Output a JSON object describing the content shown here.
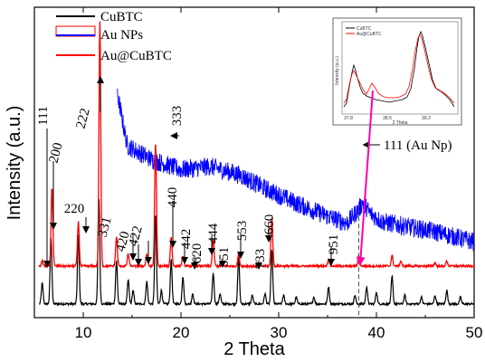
{
  "chart_data": {
    "type": "line",
    "xlabel": "2 Theta",
    "ylabel": "Intensity (a.u.)",
    "xlim": [
      5,
      50
    ],
    "x_ticks": [
      "10",
      "20",
      "30",
      "40",
      "50"
    ],
    "legend": {
      "position": "top-left",
      "entries": [
        {
          "label": "CuBTC",
          "color": "#000000"
        },
        {
          "label": "Au NPs",
          "color": "#0000ff"
        },
        {
          "label": "Au@CuBTC",
          "color": "#ff0000"
        }
      ]
    },
    "series": [
      {
        "name": "CuBTC",
        "color": "#000000",
        "baseline": 0.08,
        "peaks": [
          [
            5.8,
            0.12
          ],
          [
            6.7,
            0.38
          ],
          [
            9.5,
            0.4
          ],
          [
            11.6,
            0.62
          ],
          [
            13.4,
            0.25
          ],
          [
            14.6,
            0.14
          ],
          [
            15.1,
            0.08
          ],
          [
            16.5,
            0.13
          ],
          [
            17.4,
            0.52
          ],
          [
            18.0,
            0.08
          ],
          [
            19.0,
            0.26
          ],
          [
            20.2,
            0.16
          ],
          [
            21.2,
            0.06
          ],
          [
            23.3,
            0.18
          ],
          [
            24.0,
            0.06
          ],
          [
            25.9,
            0.28
          ],
          [
            27.3,
            0.05
          ],
          [
            28.6,
            0.06
          ],
          [
            29.3,
            0.32
          ],
          [
            30.5,
            0.05
          ],
          [
            31.8,
            0.04
          ],
          [
            33.6,
            0.04
          ],
          [
            35.1,
            0.1
          ],
          [
            37.8,
            0.05
          ],
          [
            39.0,
            0.1
          ],
          [
            40.0,
            0.07
          ],
          [
            41.6,
            0.16
          ],
          [
            42.9,
            0.05
          ],
          [
            44.6,
            0.04
          ],
          [
            46.0,
            0.05
          ],
          [
            47.2,
            0.08
          ],
          [
            48.6,
            0.04
          ]
        ]
      },
      {
        "name": "Au NPs",
        "color": "#0000ff",
        "description_points": [
          [
            13.5,
            1.3
          ],
          [
            14.5,
            1.0
          ],
          [
            17,
            0.92
          ],
          [
            20,
            0.86
          ],
          [
            23,
            0.88
          ],
          [
            26,
            0.83
          ],
          [
            29,
            0.74
          ],
          [
            32,
            0.66
          ],
          [
            35,
            0.59
          ],
          [
            37,
            0.55
          ],
          [
            38.2,
            0.63
          ],
          [
            38.6,
            0.67
          ],
          [
            39.3,
            0.61
          ],
          [
            40.5,
            0.56
          ],
          [
            43,
            0.53
          ],
          [
            46,
            0.5
          ],
          [
            50,
            0.44
          ]
        ]
      },
      {
        "name": "Au@CuBTC",
        "color": "#ff0000",
        "baseline": 0.3,
        "peaks": [
          [
            5.8,
            0.03
          ],
          [
            6.8,
            0.46
          ],
          [
            9.5,
            0.26
          ],
          [
            11.7,
            1.42
          ],
          [
            13.4,
            0.17
          ],
          [
            14.6,
            0.07
          ],
          [
            16.5,
            0.07
          ],
          [
            17.4,
            0.72
          ],
          [
            19.0,
            0.17
          ],
          [
            20.2,
            0.06
          ],
          [
            23.3,
            0.16
          ],
          [
            25.9,
            0.07
          ],
          [
            29.3,
            0.28
          ],
          [
            35.1,
            0.04
          ],
          [
            38.2,
            0.06
          ],
          [
            41.6,
            0.06
          ],
          [
            42.5,
            0.03
          ],
          [
            46.0,
            0.02
          ],
          [
            47.2,
            0.03
          ]
        ]
      }
    ],
    "annotations": [
      {
        "text": "111",
        "x": 5.8
      },
      {
        "text": "200",
        "x": 6.7
      },
      {
        "text": "222",
        "x": 11.7
      },
      {
        "text": "220",
        "x": 9.5
      },
      {
        "text": "331",
        "x": 14.6
      },
      {
        "text": "420",
        "x": 15.2
      },
      {
        "text": "422",
        "x": 16.5
      },
      {
        "text": "333",
        "x": 17.4
      },
      {
        "text": "440",
        "x": 19.0
      },
      {
        "text": "442",
        "x": 20.2
      },
      {
        "text": "620",
        "x": 21.2
      },
      {
        "text": "444",
        "x": 23.3
      },
      {
        "text": "551",
        "x": 24.0
      },
      {
        "text": "553",
        "x": 25.9
      },
      {
        "text": "733",
        "x": 27.5
      },
      {
        "text": "660",
        "x": 29.3
      },
      {
        "text": "951",
        "x": 35.2
      },
      {
        "text": "111 (Au Np)",
        "x": 38.2
      }
    ],
    "inset": {
      "legend": [
        "CuBTC",
        "Au@CuBTC"
      ],
      "ylabel": "Intensity (a.u.)",
      "xlabel": "2 Theta",
      "x_ticks": [
        "37.8",
        "38.5",
        "39.2"
      ]
    }
  }
}
